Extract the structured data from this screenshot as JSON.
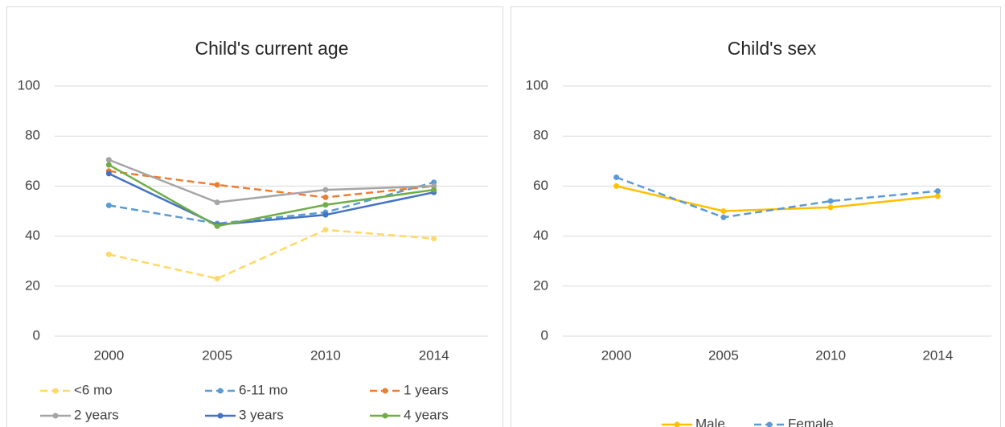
{
  "chart_data": [
    {
      "type": "line",
      "title": "Child's current age",
      "categories": [
        "2000",
        "2005",
        "2010",
        "2014"
      ],
      "ylim": [
        0,
        100
      ],
      "yticks": [
        0,
        20,
        40,
        60,
        80,
        100
      ],
      "grid": true,
      "series": [
        {
          "name": "<6 mo",
          "color": "#ffd966",
          "dashed": true,
          "values": [
            32.7,
            23,
            42.5,
            39
          ]
        },
        {
          "name": "6-11 mo",
          "color": "#5b9bd5",
          "dashed": true,
          "values": [
            52.3,
            45,
            49.5,
            61.5
          ]
        },
        {
          "name": "1 years",
          "color": "#ed7d31",
          "dashed": true,
          "values": [
            66,
            60.5,
            55.5,
            60
          ]
        },
        {
          "name": "2 years",
          "color": "#a5a5a5",
          "dashed": false,
          "values": [
            70.5,
            53.5,
            58.5,
            60
          ]
        },
        {
          "name": "3 years",
          "color": "#4472c4",
          "dashed": false,
          "values": [
            65,
            44.5,
            48.5,
            57.5
          ]
        },
        {
          "name": "4 years",
          "color": "#70ad47",
          "dashed": false,
          "values": [
            68.5,
            44,
            52.5,
            58.5
          ]
        }
      ]
    },
    {
      "type": "line",
      "title": "Child's sex",
      "categories": [
        "2000",
        "2005",
        "2010",
        "2014"
      ],
      "ylim": [
        0,
        100
      ],
      "yticks": [
        0,
        20,
        40,
        60,
        80,
        100
      ],
      "grid": true,
      "series": [
        {
          "name": "Male",
          "color": "#ffc000",
          "dashed": false,
          "values": [
            60,
            50,
            51.5,
            56
          ]
        },
        {
          "name": "Female",
          "color": "#5b9bd5",
          "dashed": true,
          "values": [
            63.5,
            47.5,
            54,
            58
          ]
        }
      ]
    }
  ]
}
